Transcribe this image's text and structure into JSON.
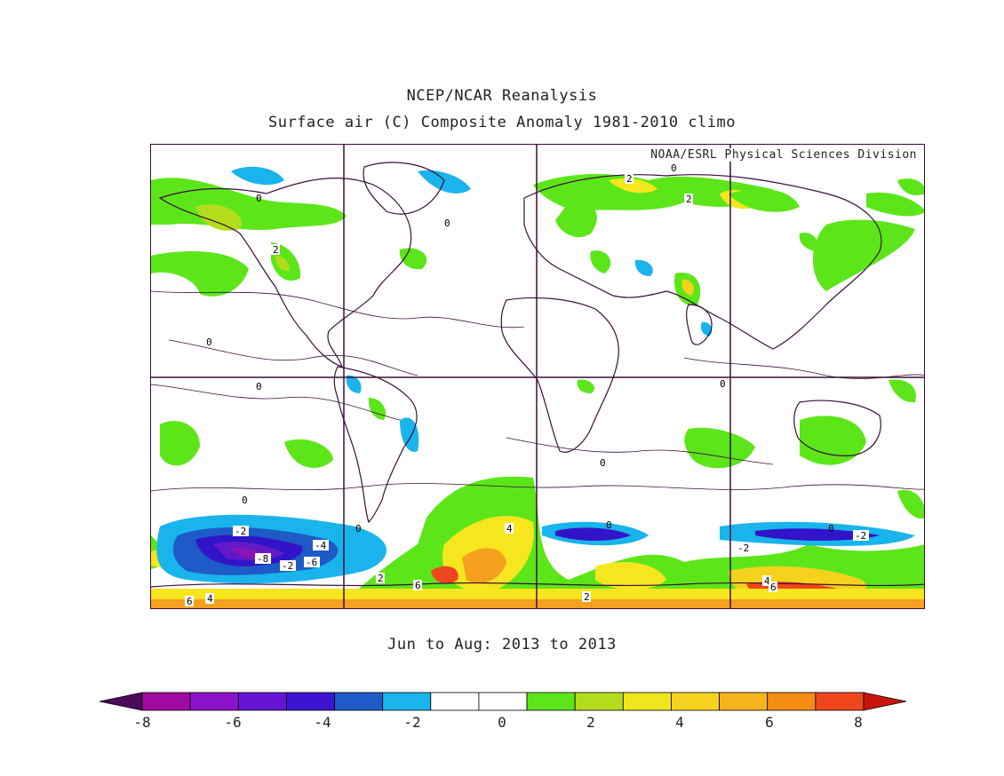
{
  "header": {
    "line1": "NCEP/NCAR Reanalysis",
    "line2": "Surface air (C) Composite Anomaly 1981-2010 climo"
  },
  "map": {
    "credit": "NOAA/ESRL Physical Sciences Division",
    "contour_labels": [
      "0",
      "2",
      "-2",
      "-4",
      "-6",
      "-8",
      "4",
      "6"
    ],
    "palette": {
      "border": "#3a0e3a",
      "green": "#5ce619",
      "yellowgreen": "#b3dc1a",
      "yellow": "#f5e61e",
      "orange": "#f5a01e",
      "red": "#f0461e",
      "cyan": "#19b4eb",
      "blue": "#1e5ac8",
      "indigo": "#3214c8",
      "violet": "#6419c8",
      "purple": "#8c14b4"
    }
  },
  "period": "Jun to Aug: 2013 to 2013",
  "colorbar": {
    "colors": [
      "#4b0a5a",
      "#a00aa0",
      "#8c14c8",
      "#6414d2",
      "#3c14d2",
      "#1e5ac8",
      "#19b4eb",
      "#ffffff",
      "#ffffff",
      "#5ce619",
      "#b3dc1a",
      "#f0e61e",
      "#f5d21e",
      "#f5b41e",
      "#f58c14",
      "#f0461e",
      "#c8140a"
    ],
    "labels": [
      "-8",
      "-6",
      "-4",
      "-2",
      "0",
      "2",
      "4",
      "6",
      "8"
    ]
  }
}
